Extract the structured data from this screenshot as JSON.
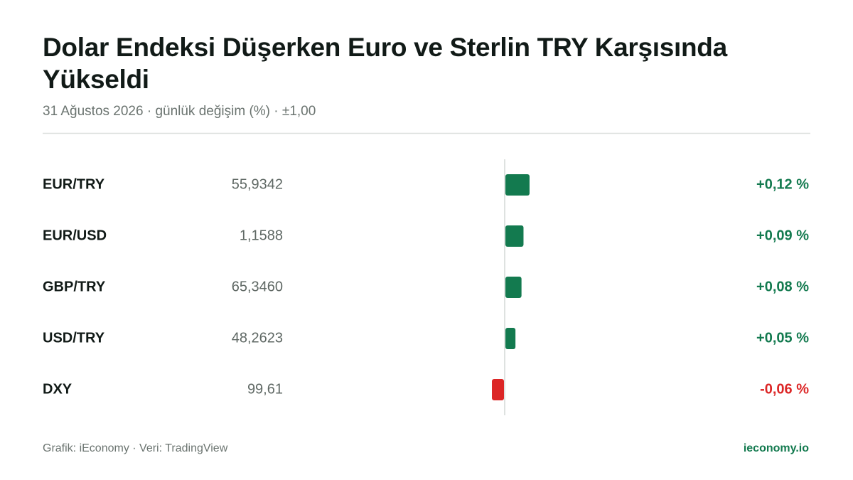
{
  "chart_data": {
    "type": "bar",
    "title": "Dolar Endeksi Düşerken Euro ve Sterlin TRY Karşısında Yükseldi",
    "subtitle": "31 Ağustos 2026 · günlük değişim (%) · ±1,00",
    "categories": [
      "EUR/TRY",
      "EUR/USD",
      "GBP/TRY",
      "USD/TRY",
      "DXY"
    ],
    "prices": [
      "55,9342",
      "1,1588",
      "65,3460",
      "48,2623",
      "99,61"
    ],
    "values": [
      0.12,
      0.09,
      0.08,
      0.05,
      -0.06
    ],
    "value_labels": [
      "+0,12 %",
      "+0,09 %",
      "+0,08 %",
      "+0,05 %",
      "-0,06 %"
    ],
    "positive_color": "#137a4f",
    "negative_color": "#dc2626",
    "xlim": [
      -1,
      1
    ],
    "source": "Grafik: iEconomy · Veri: TradingView",
    "brand": "ieconomy.io"
  }
}
